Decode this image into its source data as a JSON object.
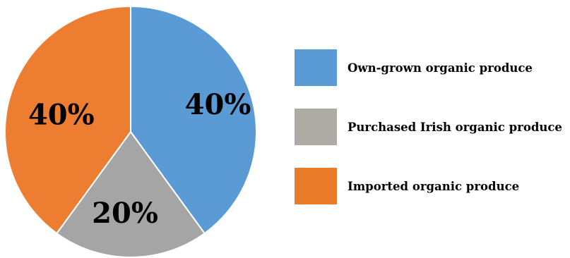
{
  "chart_data": {
    "type": "pie",
    "categories": [
      "Own-grown organic produce",
      "Purchased Irish organic produce",
      "Imported organic produce"
    ],
    "values": [
      40,
      20,
      40
    ],
    "labels": [
      "40%",
      "20%",
      "40%"
    ],
    "colors": [
      "#5b9bd5",
      "#a5a5a5",
      "#ed7d31"
    ],
    "legend_colors": [
      "#5b9bd5",
      "#aeaaa4",
      "#e97b29"
    ],
    "start_angle": "12 o'clock",
    "direction": "clockwise",
    "legend_position": "right",
    "title": ""
  }
}
